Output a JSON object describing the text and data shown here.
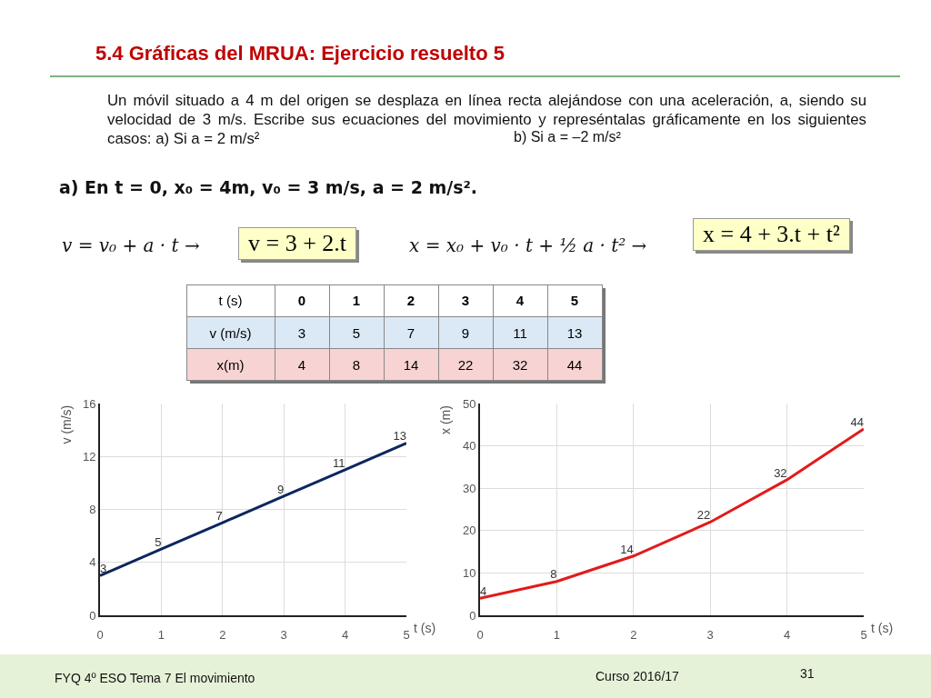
{
  "chart_data": [
    {
      "type": "other",
      "title": "5.4  Gráficas del MRUA: Ejercicio resuelto 5",
      "subtitle": "Un móvil situado a 4 m del origen se desplaza en línea recta alejándose con una aceleración, a, siendo su velocidad de 3 m/s. Escribe sus ecuaciones del movimiento y represéntalas gráficamente en los siguientes casos:  a) Si a = 2 m/s²",
      "annotations": [
        "b) Si a = –2 m/s²",
        "a) En t = 0,  x₀ = 4m,  v₀ = 3 m/s,  a = 2 m/s².",
        "v = v₀ + a · t  →",
        "v = 3 + 2.t",
        "x = x₀ + v₀ · t + ½ a · t²  →",
        "x = 4 + 3.t + t²",
        "FYQ 4º ESO  Tema 7 El movimiento",
        "Curso 2016/17",
        "31"
      ]
    },
    {
      "type": "heatmap",
      "data_labels": true,
      "xlabel": "t (s)",
      "categories": [
        "0",
        "1",
        "2",
        "3",
        "4",
        "5"
      ],
      "y_categories": [
        "v (m/s)",
        "x(m)"
      ],
      "cells": [
        [
          3,
          5,
          7,
          9,
          11,
          13
        ],
        [
          4,
          8,
          14,
          22,
          32,
          44
        ]
      ]
    },
    {
      "type": "line",
      "xlabel": "t (s)",
      "ylabel": "v (m/s)",
      "x": [
        0,
        1,
        2,
        3,
        4,
        5
      ],
      "xlim": [
        0,
        5
      ],
      "xticks": [
        0,
        1,
        2,
        3,
        4,
        5
      ],
      "ylim": [
        0,
        16
      ],
      "yticks": [
        0,
        4,
        8,
        12,
        16
      ],
      "grid": true,
      "data_labels": true,
      "series": [
        {
          "color": "#0d2660",
          "values": [
            3,
            5,
            7,
            9,
            11,
            13
          ]
        }
      ]
    },
    {
      "type": "line",
      "xlabel": "t (s)",
      "ylabel": "x (m)",
      "x": [
        0,
        1,
        2,
        3,
        4,
        5
      ],
      "xlim": [
        0,
        5
      ],
      "xticks": [
        0,
        1,
        2,
        3,
        4,
        5
      ],
      "ylim": [
        0,
        50
      ],
      "yticks": [
        0,
        10,
        20,
        30,
        40,
        50
      ],
      "grid": true,
      "data_labels": true,
      "series": [
        {
          "color": "#e31a1a",
          "values": [
            4,
            8,
            14,
            22,
            32,
            44
          ]
        }
      ]
    }
  ]
}
